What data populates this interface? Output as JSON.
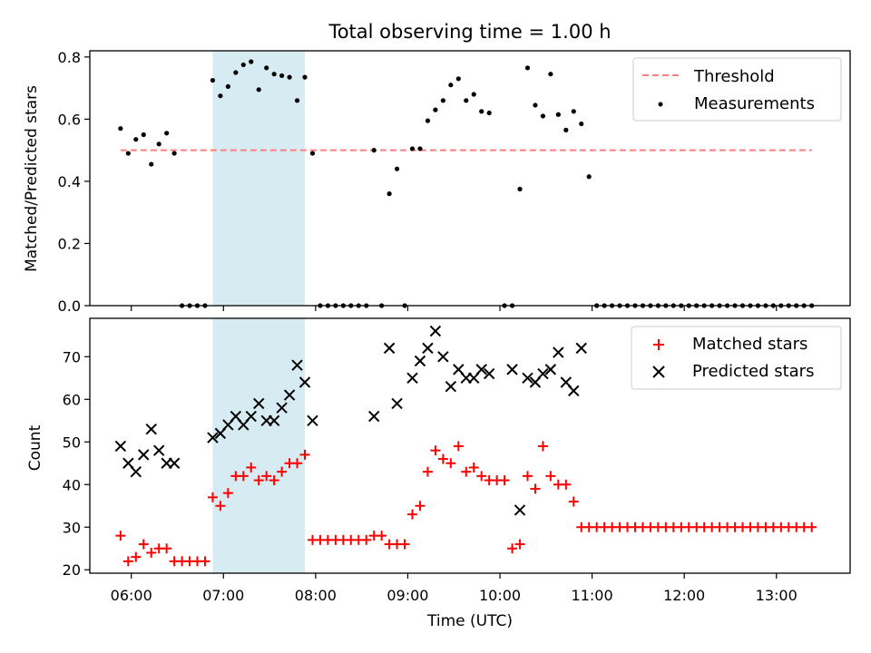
{
  "title": "Total observing time = 1.00 h",
  "colors": {
    "threshold": "#ff7f7f",
    "measurements": "#000000",
    "matched": "#ff0000",
    "predicted": "#000000",
    "highlight": "#add8e6"
  },
  "chart_data": [
    {
      "type": "scatter",
      "title": "Total observing time = 1.00 h",
      "xlabel": "",
      "ylabel": "Matched/Predicted stars",
      "xlim": [
        "05:33",
        "13:48"
      ],
      "ylim": [
        0,
        0.82
      ],
      "yticks": [
        "0.0",
        "0.2",
        "0.4",
        "0.6",
        "0.8"
      ],
      "legend_placement": "top-right",
      "highlight_span": [
        "06:53",
        "07:53"
      ],
      "threshold": {
        "name": "Threshold",
        "value": 0.5,
        "x_range": [
          "05:53",
          "13:23"
        ],
        "style": "dashed"
      },
      "series": [
        {
          "name": "Measurements",
          "marker": "dot",
          "points": [
            [
              "05:53",
              0.57
            ],
            [
              "05:58",
              0.49
            ],
            [
              "06:03",
              0.535
            ],
            [
              "06:08",
              0.55
            ],
            [
              "06:13",
              0.455
            ],
            [
              "06:18",
              0.52
            ],
            [
              "06:23",
              0.555
            ],
            [
              "06:28",
              0.49
            ],
            [
              "06:33",
              0
            ],
            [
              "06:38",
              0
            ],
            [
              "06:43",
              0
            ],
            [
              "06:48",
              0
            ],
            [
              "06:53",
              0.725
            ],
            [
              "06:58",
              0.675
            ],
            [
              "07:03",
              0.705
            ],
            [
              "07:08",
              0.75
            ],
            [
              "07:13",
              0.775
            ],
            [
              "07:18",
              0.785
            ],
            [
              "07:23",
              0.695
            ],
            [
              "07:28",
              0.765
            ],
            [
              "07:33",
              0.745
            ],
            [
              "07:38",
              0.74
            ],
            [
              "07:43",
              0.735
            ],
            [
              "07:48",
              0.66
            ],
            [
              "07:53",
              0.735
            ],
            [
              "07:58",
              0.49
            ],
            [
              "08:03",
              0
            ],
            [
              "08:08",
              0
            ],
            [
              "08:13",
              0
            ],
            [
              "08:18",
              0
            ],
            [
              "08:23",
              0
            ],
            [
              "08:28",
              0
            ],
            [
              "08:33",
              0
            ],
            [
              "08:38",
              0.5
            ],
            [
              "08:43",
              0
            ],
            [
              "08:48",
              0.36
            ],
            [
              "08:53",
              0.44
            ],
            [
              "08:58",
              0
            ],
            [
              "09:03",
              0.505
            ],
            [
              "09:08",
              0.505
            ],
            [
              "09:13",
              0.595
            ],
            [
              "09:18",
              0.63
            ],
            [
              "09:23",
              0.66
            ],
            [
              "09:28",
              0.71
            ],
            [
              "09:33",
              0.73
            ],
            [
              "09:38",
              0.66
            ],
            [
              "09:43",
              0.68
            ],
            [
              "09:48",
              0.625
            ],
            [
              "09:53",
              0.62
            ],
            [
              "10:03",
              0
            ],
            [
              "10:08",
              0
            ],
            [
              "10:13",
              0.375
            ],
            [
              "10:18",
              0.765
            ],
            [
              "10:23",
              0.645
            ],
            [
              "10:28",
              0.61
            ],
            [
              "10:33",
              0.745
            ],
            [
              "10:38",
              0.615
            ],
            [
              "10:43",
              0.565
            ],
            [
              "10:48",
              0.625
            ],
            [
              "10:53",
              0.585
            ],
            [
              "10:58",
              0.415
            ],
            [
              "11:03",
              0
            ],
            [
              "11:08",
              0
            ],
            [
              "11:13",
              0
            ],
            [
              "11:18",
              0
            ],
            [
              "11:23",
              0
            ],
            [
              "11:28",
              0
            ],
            [
              "11:33",
              0
            ],
            [
              "11:38",
              0
            ],
            [
              "11:43",
              0
            ],
            [
              "11:48",
              0
            ],
            [
              "11:53",
              0
            ],
            [
              "11:58",
              0
            ],
            [
              "12:03",
              0
            ],
            [
              "12:08",
              0
            ],
            [
              "12:13",
              0
            ],
            [
              "12:18",
              0
            ],
            [
              "12:23",
              0
            ],
            [
              "12:28",
              0
            ],
            [
              "12:33",
              0
            ],
            [
              "12:38",
              0
            ],
            [
              "12:43",
              0
            ],
            [
              "12:48",
              0
            ],
            [
              "12:53",
              0
            ],
            [
              "12:58",
              0
            ],
            [
              "13:03",
              0
            ],
            [
              "13:08",
              0
            ],
            [
              "13:13",
              0
            ],
            [
              "13:18",
              0
            ],
            [
              "13:23",
              0
            ]
          ]
        }
      ]
    },
    {
      "type": "scatter",
      "title": "",
      "xlabel": "Time (UTC)",
      "ylabel": "Count",
      "xlim": [
        "05:33",
        "13:48"
      ],
      "ylim": [
        19.2,
        79
      ],
      "xticks": [
        "06:00",
        "07:00",
        "08:00",
        "09:00",
        "10:00",
        "11:00",
        "12:00",
        "13:00"
      ],
      "yticks": [
        "20",
        "30",
        "40",
        "50",
        "60",
        "70"
      ],
      "legend_placement": "top-right",
      "highlight_span": [
        "06:53",
        "07:53"
      ],
      "series": [
        {
          "name": "Matched stars",
          "marker": "plus",
          "points": [
            [
              "05:53",
              28
            ],
            [
              "05:58",
              22
            ],
            [
              "06:03",
              23
            ],
            [
              "06:08",
              26
            ],
            [
              "06:13",
              24
            ],
            [
              "06:18",
              25
            ],
            [
              "06:23",
              25
            ],
            [
              "06:28",
              22
            ],
            [
              "06:33",
              22
            ],
            [
              "06:38",
              22
            ],
            [
              "06:43",
              22
            ],
            [
              "06:48",
              22
            ],
            [
              "06:53",
              37
            ],
            [
              "06:58",
              35
            ],
            [
              "07:03",
              38
            ],
            [
              "07:08",
              42
            ],
            [
              "07:13",
              42
            ],
            [
              "07:18",
              44
            ],
            [
              "07:23",
              41
            ],
            [
              "07:28",
              42
            ],
            [
              "07:33",
              41
            ],
            [
              "07:38",
              43
            ],
            [
              "07:43",
              45
            ],
            [
              "07:48",
              45
            ],
            [
              "07:53",
              47
            ],
            [
              "07:58",
              27
            ],
            [
              "08:03",
              27
            ],
            [
              "08:08",
              27
            ],
            [
              "08:13",
              27
            ],
            [
              "08:18",
              27
            ],
            [
              "08:23",
              27
            ],
            [
              "08:28",
              27
            ],
            [
              "08:33",
              27
            ],
            [
              "08:38",
              28
            ],
            [
              "08:43",
              28
            ],
            [
              "08:48",
              26
            ],
            [
              "08:53",
              26
            ],
            [
              "08:58",
              26
            ],
            [
              "09:03",
              33
            ],
            [
              "09:08",
              35
            ],
            [
              "09:13",
              43
            ],
            [
              "09:18",
              48
            ],
            [
              "09:23",
              46
            ],
            [
              "09:28",
              45
            ],
            [
              "09:33",
              49
            ],
            [
              "09:38",
              43
            ],
            [
              "09:43",
              44
            ],
            [
              "09:48",
              42
            ],
            [
              "09:53",
              41
            ],
            [
              "09:58",
              41
            ],
            [
              "10:03",
              41
            ],
            [
              "10:08",
              25
            ],
            [
              "10:13",
              26
            ],
            [
              "10:18",
              42
            ],
            [
              "10:23",
              39
            ],
            [
              "10:28",
              49
            ],
            [
              "10:33",
              42
            ],
            [
              "10:38",
              40
            ],
            [
              "10:43",
              40
            ],
            [
              "10:48",
              36
            ],
            [
              "10:53",
              30
            ],
            [
              "10:58",
              30
            ],
            [
              "11:03",
              30
            ],
            [
              "11:08",
              30
            ],
            [
              "11:13",
              30
            ],
            [
              "11:18",
              30
            ],
            [
              "11:23",
              30
            ],
            [
              "11:28",
              30
            ],
            [
              "11:33",
              30
            ],
            [
              "11:38",
              30
            ],
            [
              "11:43",
              30
            ],
            [
              "11:48",
              30
            ],
            [
              "11:53",
              30
            ],
            [
              "11:58",
              30
            ],
            [
              "12:03",
              30
            ],
            [
              "12:08",
              30
            ],
            [
              "12:13",
              30
            ],
            [
              "12:18",
              30
            ],
            [
              "12:23",
              30
            ],
            [
              "12:28",
              30
            ],
            [
              "12:33",
              30
            ],
            [
              "12:38",
              30
            ],
            [
              "12:43",
              30
            ],
            [
              "12:48",
              30
            ],
            [
              "12:53",
              30
            ],
            [
              "12:58",
              30
            ],
            [
              "13:03",
              30
            ],
            [
              "13:08",
              30
            ],
            [
              "13:13",
              30
            ],
            [
              "13:18",
              30
            ],
            [
              "13:23",
              30
            ]
          ]
        },
        {
          "name": "Predicted stars",
          "marker": "x",
          "points": [
            [
              "05:53",
              49
            ],
            [
              "05:58",
              45
            ],
            [
              "06:03",
              43
            ],
            [
              "06:08",
              47
            ],
            [
              "06:13",
              53
            ],
            [
              "06:18",
              48
            ],
            [
              "06:23",
              45
            ],
            [
              "06:28",
              45
            ],
            [
              "06:53",
              51
            ],
            [
              "06:58",
              52
            ],
            [
              "07:03",
              54
            ],
            [
              "07:08",
              56
            ],
            [
              "07:13",
              54
            ],
            [
              "07:18",
              56
            ],
            [
              "07:23",
              59
            ],
            [
              "07:28",
              55
            ],
            [
              "07:33",
              55
            ],
            [
              "07:38",
              58
            ],
            [
              "07:43",
              61
            ],
            [
              "07:48",
              68
            ],
            [
              "07:53",
              64
            ],
            [
              "07:58",
              55
            ],
            [
              "08:38",
              56
            ],
            [
              "08:48",
              72
            ],
            [
              "08:53",
              59
            ],
            [
              "09:03",
              65
            ],
            [
              "09:08",
              69
            ],
            [
              "09:13",
              72
            ],
            [
              "09:18",
              76
            ],
            [
              "09:23",
              70
            ],
            [
              "09:28",
              63
            ],
            [
              "09:33",
              67
            ],
            [
              "09:38",
              65
            ],
            [
              "09:43",
              65
            ],
            [
              "09:48",
              67
            ],
            [
              "09:53",
              66
            ],
            [
              "10:08",
              67
            ],
            [
              "10:13",
              34
            ],
            [
              "10:18",
              65
            ],
            [
              "10:23",
              64
            ],
            [
              "10:28",
              66
            ],
            [
              "10:33",
              67
            ],
            [
              "10:38",
              71
            ],
            [
              "10:43",
              64
            ],
            [
              "10:48",
              62
            ],
            [
              "10:53",
              72
            ]
          ]
        }
      ]
    }
  ]
}
